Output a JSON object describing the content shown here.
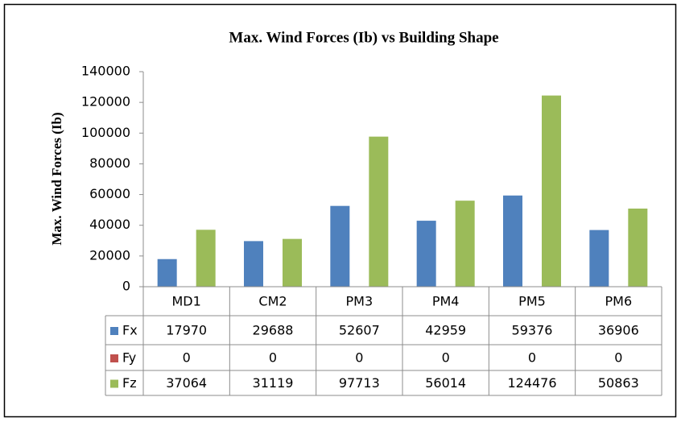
{
  "chart_data": {
    "type": "bar",
    "title": "Max. Wind Forces (Ib) vs Building Shape",
    "y_label": "Max. Wind Forces (Ib)",
    "categories": [
      "MD1",
      "CM2",
      "PM3",
      "PM4",
      "PM5",
      "PM6"
    ],
    "series": [
      {
        "name": "Fx",
        "color": "#4f81bd",
        "values": [
          17970,
          29688,
          52607,
          42959,
          59376,
          36906
        ]
      },
      {
        "name": "Fy",
        "color": "#c0504d",
        "values": [
          0,
          0,
          0,
          0,
          0,
          0
        ]
      },
      {
        "name": "Fz",
        "color": "#9bbb59",
        "values": [
          37064,
          31119,
          97713,
          56014,
          124476,
          50863
        ]
      }
    ],
    "ylim": [
      0,
      140000
    ],
    "yticks": [
      0,
      20000,
      40000,
      60000,
      80000,
      100000,
      120000,
      140000
    ],
    "grid": false,
    "data_table": true
  }
}
